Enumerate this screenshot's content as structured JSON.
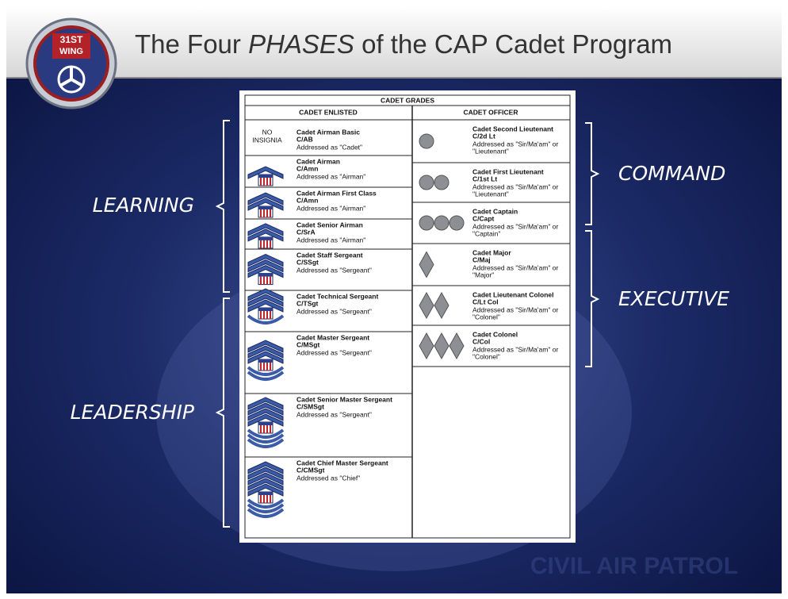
{
  "header": {
    "logo": [
      "31ST",
      "WING"
    ],
    "title": {
      "before": "The Four ",
      "emphasis": "PHASES",
      "after": " of the CAP Cadet Program"
    }
  },
  "table": {
    "title": "CADET GRADES",
    "enlisted": {
      "heading": "CADET ENLISTED",
      "no_insignia": [
        "NO",
        "INSIGNIA"
      ],
      "rows": [
        {
          "name": "Cadet Airman Basic",
          "abbr": "C/AB",
          "address": [
            "Addressed as \"Cadet\""
          ]
        },
        {
          "name": "Cadet Airman",
          "abbr": "C/Amn",
          "address": [
            "Addressed as \"Airman\""
          ]
        },
        {
          "name": "Cadet Airman First Class",
          "abbr": "C/Amn",
          "address": [
            "Addressed as \"Airman\""
          ]
        },
        {
          "name": "Cadet Senior Airman",
          "abbr": "C/SrA",
          "address": [
            "Addressed as \"Airman\""
          ]
        },
        {
          "name": "Cadet Staff Sergeant",
          "abbr": "C/SSgt",
          "address": [
            "Addressed as \"Sergeant\""
          ]
        },
        {
          "name": "Cadet Technical Sergeant",
          "abbr": "C/TSgt",
          "address": [
            "Addressed as \"Sergeant\""
          ]
        },
        {
          "name": "Cadet Master Sergeant",
          "abbr": "C/MSgt",
          "address": [
            "Addressed as \"Sergeant\""
          ]
        },
        {
          "name": "Cadet Senior Master Sergeant",
          "abbr": "C/SMSgt",
          "address": [
            "Addressed as \"Sergeant\""
          ]
        },
        {
          "name": "Cadet Chief Master Sergeant",
          "abbr": "C/CMSgt",
          "address": [
            "Addressed as \"Chief\""
          ]
        }
      ]
    },
    "officer": {
      "heading": "CADET OFFICER",
      "rows": [
        {
          "name": "Cadet Second Lieutenant",
          "abbr": "C/2d Lt",
          "address": [
            "Addressed as \"Sir/Ma'am\" or",
            "\"Lieutenant\""
          ]
        },
        {
          "name": "Cadet First Lieutenant",
          "abbr": "C/1st Lt",
          "address": [
            "Addressed as \"Sir/Ma'am\" or",
            "\"Lieutenant\""
          ]
        },
        {
          "name": "Cadet Captain",
          "abbr": "C/Capt",
          "address": [
            "Addressed as \"Sir/Ma'am\" or",
            "\"Captain\""
          ]
        },
        {
          "name": "Cadet Major",
          "abbr": "C/Maj",
          "address": [
            "Addressed as \"Sir/Ma'am\" or",
            "\"Major\""
          ]
        },
        {
          "name": "Cadet Lieutenant Colonel",
          "abbr": "C/Lt Col",
          "address": [
            "Addressed as \"Sir/Ma'am\" or",
            "\"Colonel\""
          ]
        },
        {
          "name": "Cadet Colonel",
          "abbr": "C/Col",
          "address": [
            "Addressed as \"Sir/Ma'am\" or",
            "\"Colonel\""
          ]
        }
      ]
    }
  },
  "phases": {
    "learning": "LEARNING",
    "leadership": "LEADERSHIP",
    "command": "COMMAND",
    "executive": "EXECUTIVE"
  },
  "footer": {
    "watermark": "CIVIL AIR PATROL"
  }
}
